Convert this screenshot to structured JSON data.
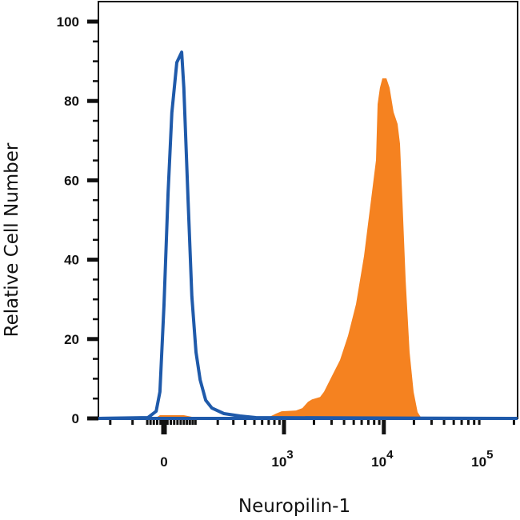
{
  "chart_data": {
    "type": "area",
    "xlabel": "Neuropilin-1",
    "ylabel": "Relative Cell Number",
    "x_scale": "biexponential",
    "xlim": [
      -274,
      221700
    ],
    "ylim": [
      0,
      100
    ],
    "y_ticks": [
      0,
      20,
      40,
      60,
      80,
      100
    ],
    "x_ticks": [
      {
        "value": 0,
        "base": "0",
        "exp": ""
      },
      {
        "value": 1000,
        "base": "10",
        "exp": "3"
      },
      {
        "value": 10000,
        "base": "10",
        "exp": "4"
      },
      {
        "value": 100000,
        "base": "10",
        "exp": "5"
      }
    ],
    "grid": false,
    "series": [
      {
        "style": "filled",
        "color": "#F58220",
        "x": [
          -274,
          -23,
          -12,
          60,
          102,
          140,
          688,
          830,
          946,
          1320,
          1532,
          1742,
          1912,
          2300,
          2521,
          3030,
          3645,
          4380,
          5270,
          6336,
          6944,
          7615,
          8350,
          8660,
          9145,
          9680,
          10610,
          11420,
          12520,
          13730,
          14510,
          15340,
          16520,
          18110,
          19840,
          21750,
          23840,
          221700
        ],
        "y": [
          0,
          0.2,
          0.8,
          0.8,
          0.2,
          0.2,
          0.2,
          1.2,
          1.8,
          2.0,
          2.6,
          4.2,
          4.8,
          5.4,
          6.7,
          10.7,
          14.7,
          20.8,
          28.8,
          40.9,
          49,
          57,
          65.1,
          79.2,
          83.3,
          85.7,
          85.7,
          83.3,
          77.2,
          74.2,
          69.2,
          55,
          34.7,
          16.7,
          6.7,
          1.6,
          0,
          0
        ]
      },
      {
        "style": "line",
        "color": "#1F5AAA",
        "x": [
          -274,
          -48,
          -23,
          -12,
          0,
          12,
          23,
          38,
          53,
          60,
          74,
          87,
          102,
          118,
          141,
          170,
          236,
          354,
          519,
          221700
        ],
        "y": [
          0,
          0.2,
          1.8,
          6.7,
          28.6,
          56.8,
          77,
          89.7,
          92.3,
          83.3,
          55,
          30.8,
          16.7,
          9.7,
          4.6,
          2.6,
          1.2,
          0.6,
          0.2,
          0
        ]
      }
    ]
  }
}
